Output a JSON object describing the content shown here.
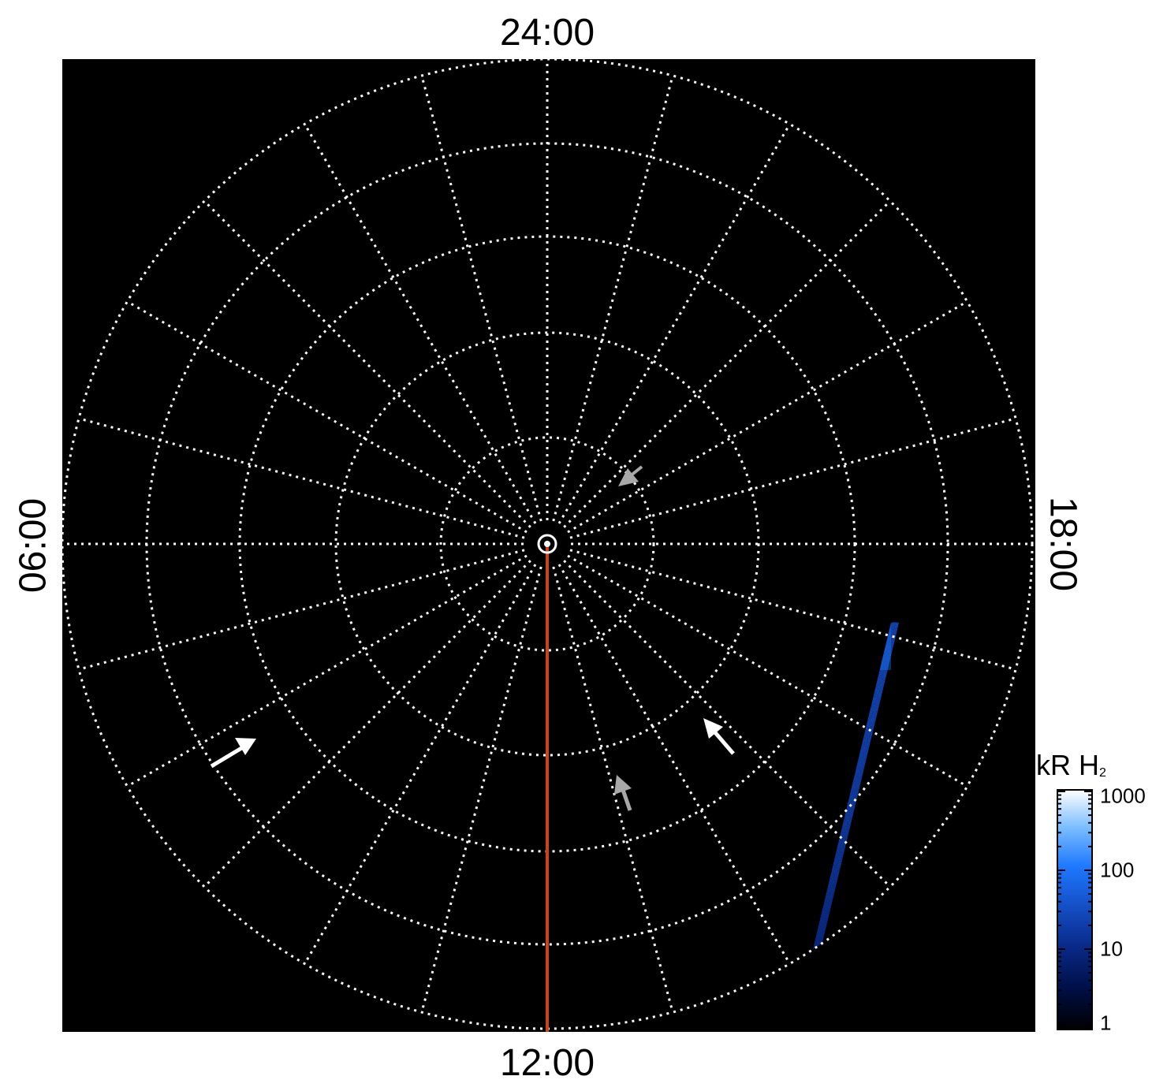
{
  "image": {
    "subject": "aurora-polar-projection",
    "colors": {
      "sky": "#000000",
      "grid": "#ffffff",
      "meridian": "#c8441e",
      "emission_dim": "#0a2a8a",
      "emission_mid": "#1e78ff",
      "emission_bright": "#ffffff",
      "arrow_primary": "#ffffff",
      "arrow_secondary": "#a8a8a8"
    }
  },
  "local_time_labels": {
    "top": "24:00",
    "bottom": "12:00",
    "left": "06:00",
    "right": "18:00"
  },
  "colorbar": {
    "title_main": "kR H",
    "title_sub": "2",
    "scale": "log",
    "ticks": [
      {
        "value": 1000,
        "label": "1000"
      },
      {
        "value": 100,
        "label": "100"
      },
      {
        "value": 10,
        "label": "10"
      },
      {
        "value": 1,
        "label": "1"
      }
    ],
    "stops": [
      "#000000",
      "#00104a",
      "#0a2a8a",
      "#1550c8",
      "#1e78ff",
      "#7fc0ff",
      "#ffffff"
    ]
  },
  "arrows": [
    {
      "name": "dawn-spot-arrow",
      "color": "white"
    },
    {
      "name": "dusk-spot-arrow",
      "color": "white"
    },
    {
      "name": "noon-spot-arrow",
      "color": "gray"
    },
    {
      "name": "polar-cap-arrow",
      "color": "gray"
    }
  ]
}
